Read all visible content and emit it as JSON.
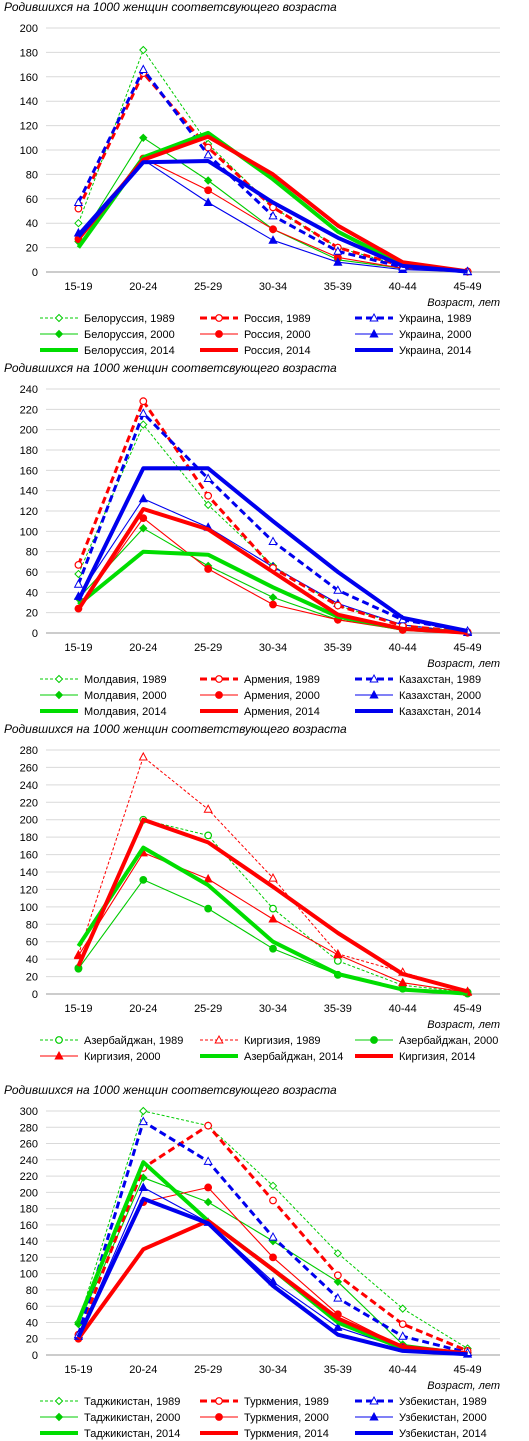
{
  "chart_data": [
    {
      "type": "line",
      "title": "Родившихся на 1000 женщин соответсвующего возраста",
      "xlabel": "Возраст, лет",
      "ylabel": "",
      "categories": [
        "15-19",
        "20-24",
        "25-29",
        "30-34",
        "35-39",
        "40-44",
        "45-49"
      ],
      "y_ticks": [
        "0",
        "20",
        "40",
        "60",
        "80",
        "100",
        "120",
        "140",
        "160",
        "180",
        "200"
      ],
      "ylim": [
        0,
        200
      ],
      "grid": true,
      "legend_position": "bottom",
      "series": [
        {
          "name": "Белоруссия, 1989",
          "color": "#00cc00",
          "style": "thin-dashed",
          "marker": "diamond-open",
          "values": [
            40,
            182,
            105,
            53,
            20,
            5,
            0.5
          ]
        },
        {
          "name": "Россия, 1989",
          "color": "#ff0000",
          "style": "thick-dashed",
          "marker": "circle-open",
          "values": [
            52,
            163,
            102,
            53,
            20,
            5,
            0.5
          ]
        },
        {
          "name": "Украина, 1989",
          "color": "#0000ee",
          "style": "thick-dashed",
          "marker": "triangle-open",
          "values": [
            57,
            166,
            96,
            46,
            17,
            4,
            0.5
          ]
        },
        {
          "name": "Белоруссия, 2000",
          "color": "#00cc00",
          "style": "thin",
          "marker": "diamond",
          "values": [
            25,
            110,
            75,
            35,
            10,
            3,
            0.3
          ]
        },
        {
          "name": "Россия, 2000",
          "color": "#ff0000",
          "style": "thin",
          "marker": "circle",
          "values": [
            27,
            93,
            67,
            35,
            12,
            3,
            0.3
          ]
        },
        {
          "name": "Украина, 2000",
          "color": "#0000ee",
          "style": "thin",
          "marker": "triangle",
          "values": [
            32,
            92,
            57,
            26,
            8,
            2,
            0.2
          ]
        },
        {
          "name": "Белоруссия, 2014",
          "color": "#00dd00",
          "style": "thick",
          "marker": "none",
          "values": [
            20,
            94,
            114,
            76,
            33,
            6,
            0.3
          ]
        },
        {
          "name": "Россия, 2014",
          "color": "#ff0000",
          "style": "thick",
          "marker": "none",
          "values": [
            27,
            92,
            111,
            80,
            38,
            8,
            0.5
          ]
        },
        {
          "name": "Украина, 2014",
          "color": "#0000ee",
          "style": "thick",
          "marker": "none",
          "values": [
            29,
            90,
            91,
            57,
            28,
            5,
            0.3
          ]
        }
      ]
    },
    {
      "type": "line",
      "title": "Родившихся на 1000 женщин соответсвующего возраста",
      "xlabel": "Возраст, лет",
      "ylabel": "",
      "categories": [
        "15-19",
        "20-24",
        "25-29",
        "30-34",
        "35-39",
        "40-44",
        "45-49"
      ],
      "y_ticks": [
        "0",
        "20",
        "40",
        "60",
        "80",
        "100",
        "120",
        "140",
        "160",
        "180",
        "200",
        "220",
        "240"
      ],
      "ylim": [
        0,
        240
      ],
      "grid": true,
      "legend_position": "bottom",
      "series": [
        {
          "name": "Молдавия, 1989",
          "color": "#00cc00",
          "style": "thin-dashed",
          "marker": "diamond-open",
          "values": [
            58,
            205,
            126,
            66,
            27,
            8,
            1
          ]
        },
        {
          "name": "Армения, 1989",
          "color": "#ff0000",
          "style": "thick-dashed",
          "marker": "circle-open",
          "values": [
            67,
            228,
            135,
            64,
            27,
            7,
            1
          ]
        },
        {
          "name": "Казахстан, 1989",
          "color": "#0000ee",
          "style": "thick-dashed",
          "marker": "triangle-open",
          "values": [
            48,
            216,
            152,
            90,
            42,
            13,
            2
          ]
        },
        {
          "name": "Молдавия, 2000",
          "color": "#00cc00",
          "style": "thin",
          "marker": "diamond",
          "values": [
            34,
            103,
            66,
            35,
            13,
            4,
            0.5
          ]
        },
        {
          "name": "Армения, 2000",
          "color": "#ff0000",
          "style": "thin",
          "marker": "circle",
          "values": [
            24,
            113,
            63,
            28,
            13,
            3,
            0.3
          ]
        },
        {
          "name": "Казахстан, 2000",
          "color": "#0000ee",
          "style": "thin",
          "marker": "triangle",
          "values": [
            36,
            132,
            104,
            65,
            29,
            8,
            0.5
          ]
        },
        {
          "name": "Молдавия, 2014",
          "color": "#00dd00",
          "style": "thick",
          "marker": "none",
          "values": [
            28,
            80,
            77,
            45,
            16,
            4,
            0.5
          ]
        },
        {
          "name": "Армения, 2014",
          "color": "#ff0000",
          "style": "thick",
          "marker": "none",
          "values": [
            23,
            122,
            102,
            60,
            18,
            4,
            0.3
          ]
        },
        {
          "name": "Казахстан, 2014",
          "color": "#0000ee",
          "style": "thick",
          "marker": "none",
          "values": [
            32,
            162,
            162,
            110,
            60,
            15,
            2
          ]
        }
      ]
    },
    {
      "type": "line",
      "title": "Родившихся на 1000 женщин соответствующего возраста",
      "xlabel": "Возраст, лет",
      "ylabel": "",
      "categories": [
        "15-19",
        "20-24",
        "25-29",
        "30-34",
        "35-39",
        "40-44",
        "45-49"
      ],
      "y_ticks": [
        "0",
        "20",
        "40",
        "60",
        "80",
        "100",
        "120",
        "140",
        "160",
        "180",
        "200",
        "220",
        "240",
        "260",
        "280"
      ],
      "ylim": [
        0,
        280
      ],
      "grid": true,
      "legend_position": "bottom",
      "series": [
        {
          "name": "Азербайджан, 1989",
          "color": "#00cc00",
          "style": "thin-dashed",
          "marker": "circle-open",
          "values": [
            30,
            200,
            182,
            98,
            38,
            10,
            2
          ]
        },
        {
          "name": "Киргизия, 1989",
          "color": "#ff0000",
          "style": "thin-dashed",
          "marker": "triangle-open",
          "values": [
            45,
            272,
            212,
            133,
            46,
            25,
            3
          ]
        },
        {
          "name": "Азербайджан, 2000",
          "color": "#00cc00",
          "style": "thin",
          "marker": "circle",
          "values": [
            29,
            131,
            98,
            52,
            22,
            6,
            0.5
          ]
        },
        {
          "name": "Киргизия, 2000",
          "color": "#ff0000",
          "style": "thin",
          "marker": "triangle",
          "values": [
            44,
            162,
            132,
            86,
            45,
            13,
            2
          ]
        },
        {
          "name": "Азербайджан, 2014",
          "color": "#00dd00",
          "style": "thick",
          "marker": "none",
          "values": [
            55,
            168,
            125,
            60,
            23,
            5,
            0.5
          ]
        },
        {
          "name": "Киргизия, 2014",
          "color": "#ff0000",
          "style": "thick",
          "marker": "none",
          "values": [
            32,
            200,
            174,
            123,
            70,
            23,
            3
          ]
        }
      ]
    },
    {
      "type": "line",
      "title": "Родившихся на 1000 женщин соответсвующего возраста",
      "xlabel": "Возраст, лет",
      "ylabel": "",
      "categories": [
        "15-19",
        "20-24",
        "25-29",
        "30-34",
        "35-39",
        "40-44",
        "45-49"
      ],
      "y_ticks": [
        "0",
        "20",
        "40",
        "60",
        "80",
        "100",
        "120",
        "140",
        "160",
        "180",
        "200",
        "220",
        "240",
        "260",
        "280",
        "300"
      ],
      "ylim": [
        0,
        300
      ],
      "grid": true,
      "legend_position": "bottom",
      "series": [
        {
          "name": "Таджикистан, 1989",
          "color": "#00cc00",
          "style": "thin-dashed",
          "marker": "diamond-open",
          "values": [
            40,
            300,
            282,
            208,
            125,
            57,
            8
          ]
        },
        {
          "name": "Туркмения, 1989",
          "color": "#ff0000",
          "style": "thick-dashed",
          "marker": "circle-open",
          "values": [
            25,
            230,
            282,
            190,
            98,
            38,
            5
          ]
        },
        {
          "name": "Узбекистан, 1989",
          "color": "#0000ee",
          "style": "thick-dashed",
          "marker": "triangle-open",
          "values": [
            25,
            287,
            238,
            145,
            70,
            23,
            3
          ]
        },
        {
          "name": "Таджикистан, 2000",
          "color": "#00cc00",
          "style": "thin",
          "marker": "diamond",
          "values": [
            38,
            218,
            188,
            140,
            90,
            13,
            3
          ]
        },
        {
          "name": "Туркмения, 2000",
          "color": "#ff0000",
          "style": "thin",
          "marker": "circle",
          "values": [
            20,
            188,
            206,
            120,
            50,
            10,
            2
          ]
        },
        {
          "name": "Узбекистан, 2000",
          "color": "#0000ee",
          "style": "thin",
          "marker": "triangle",
          "values": [
            23,
            206,
            163,
            90,
            34,
            8,
            1
          ]
        },
        {
          "name": "Таджикистан, 2014",
          "color": "#00dd00",
          "style": "thick",
          "marker": "none",
          "values": [
            42,
            237,
            165,
            105,
            40,
            8,
            1
          ]
        },
        {
          "name": "Туркмения, 2014",
          "color": "#ff0000",
          "style": "thick",
          "marker": "none",
          "values": [
            20,
            130,
            165,
            105,
            45,
            10,
            2
          ]
        },
        {
          "name": "Узбекистан, 2014",
          "color": "#0000ee",
          "style": "thick",
          "marker": "none",
          "values": [
            22,
            192,
            162,
            85,
            25,
            5,
            1
          ]
        }
      ]
    }
  ]
}
